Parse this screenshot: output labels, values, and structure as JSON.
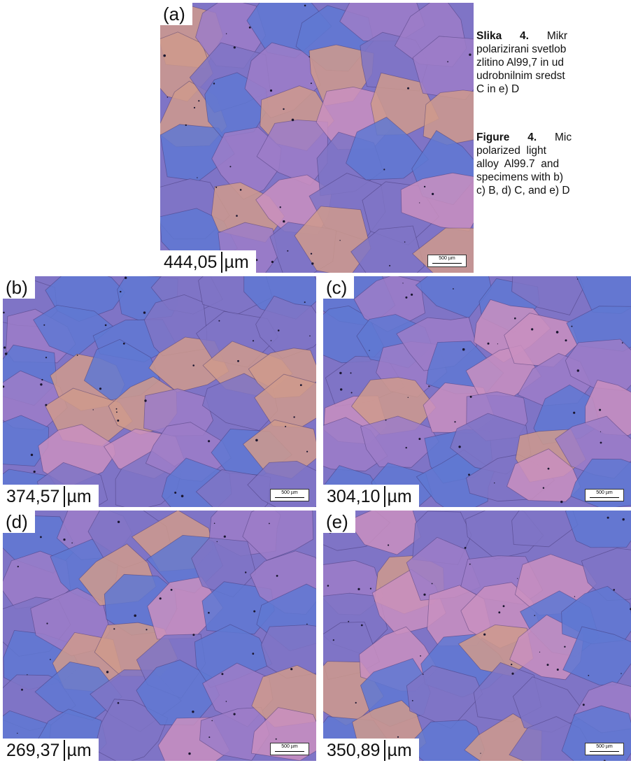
{
  "caption": {
    "sl": {
      "label": "Slika",
      "number": "4.",
      "lines": [
        "Mikr",
        "polarizirani svetlob",
        "zlitino Al99,7 in ud",
        "udrobnilnim sredst",
        "C in e) D"
      ]
    },
    "en": {
      "label": "Figure",
      "number": "4.",
      "lines": [
        "Mic",
        "polarized  light  ",
        "alloy  Al99.7  and  ",
        "specimens with b) ",
        "c) B, d) C, and e) D"
      ]
    }
  },
  "panels": {
    "a": {
      "letter": "(a)",
      "value": "444,05",
      "unit": "µm",
      "scale": "500 µm"
    },
    "b": {
      "letter": "(b)",
      "value": "374,57",
      "unit": "µm",
      "scale": "500 µm"
    },
    "c": {
      "letter": "(c)",
      "value": "304,10",
      "unit": "µm",
      "scale": "500 µm"
    },
    "d": {
      "letter": "(d)",
      "value": "269,37",
      "unit": "µm",
      "scale": "500 µm"
    },
    "e": {
      "letter": "(e)",
      "value": "350,89",
      "unit": "µm",
      "scale": "500 µm"
    }
  },
  "colors": {
    "grain_base": "#7f74c6",
    "grain_pink": "#c98fbf",
    "grain_blue": "#5f78d2",
    "grain_violet": "#9c7cc8",
    "grain_orange": "#cf9a8c",
    "boundary": "#3b2f6b"
  }
}
